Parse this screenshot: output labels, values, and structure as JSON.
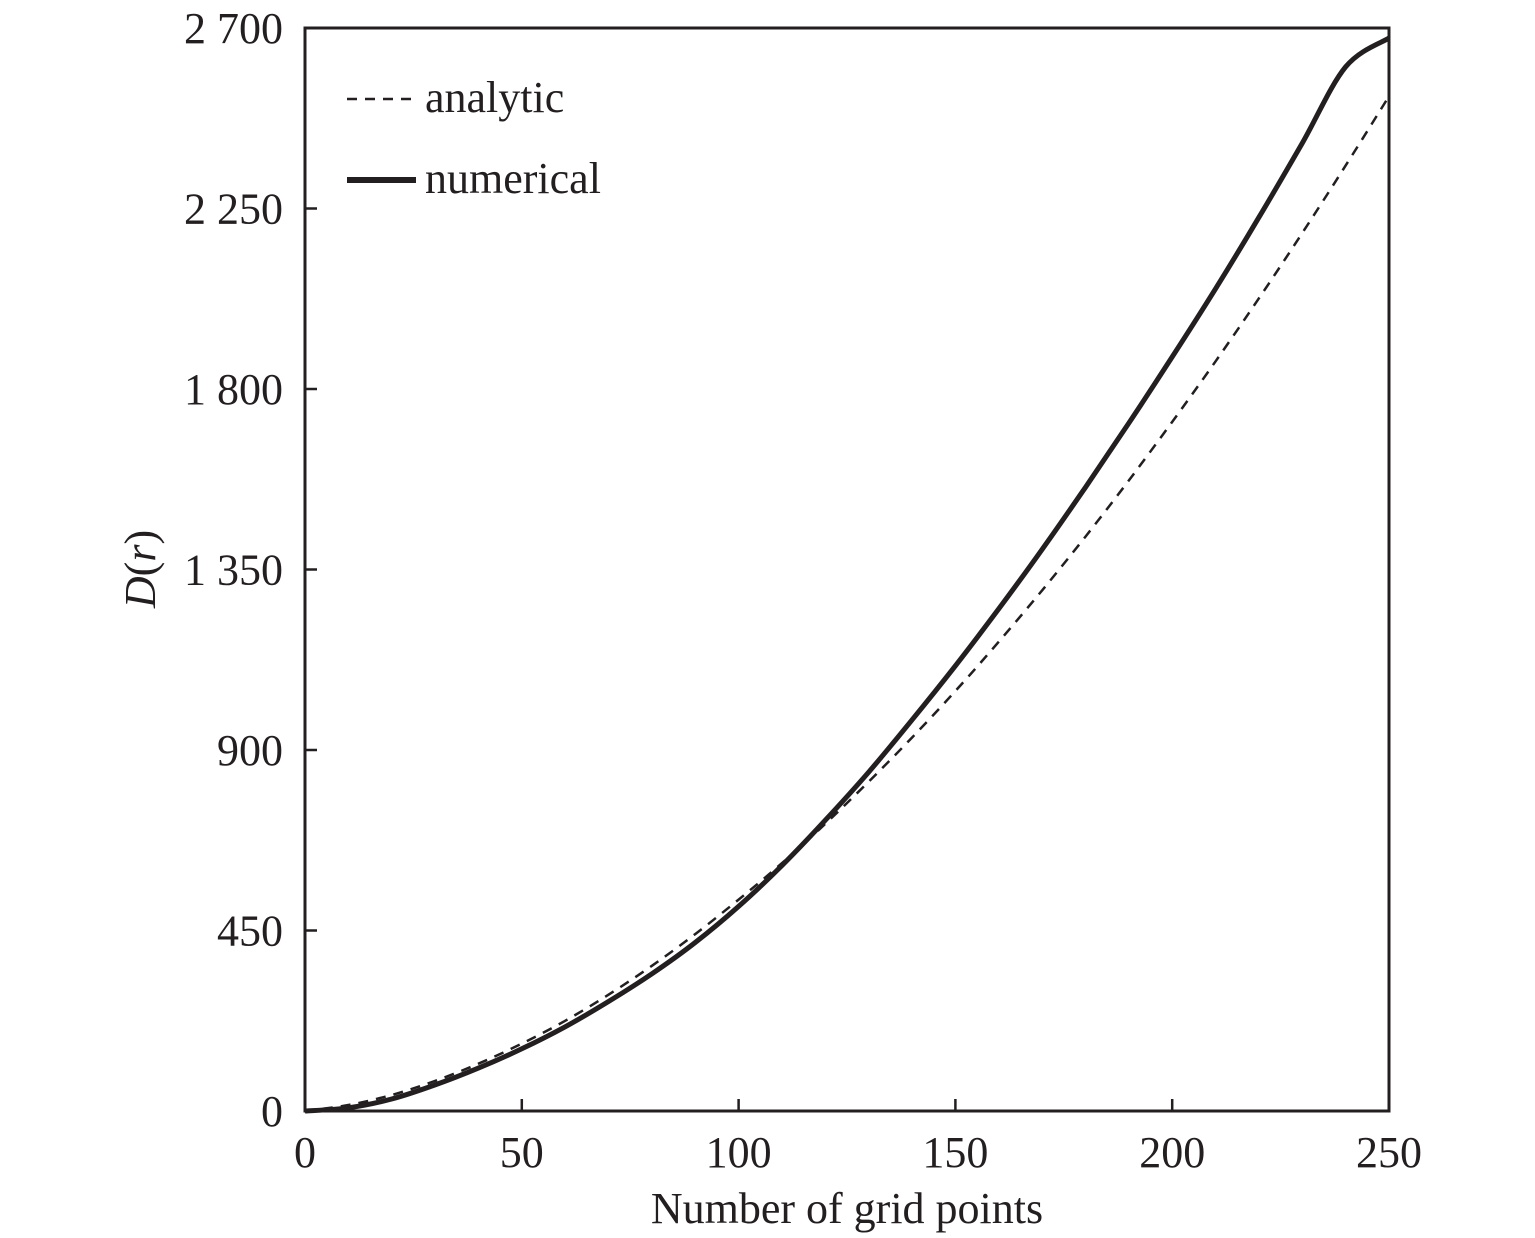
{
  "chart_data": {
    "type": "line",
    "title": "",
    "xlabel": "Number of grid points",
    "ylabel": {
      "italic_prefix": "D",
      "open": "(",
      "italic_var": "r",
      "close": ")"
    },
    "xlim": [
      0,
      250
    ],
    "ylim": [
      0,
      2700
    ],
    "xticks": [
      0,
      50,
      100,
      150,
      200,
      250
    ],
    "xtick_labels": [
      "0",
      "50",
      "100",
      "150",
      "200",
      "250"
    ],
    "yticks": [
      0,
      450,
      900,
      1350,
      1800,
      2250,
      2700
    ],
    "ytick_labels": [
      "0",
      "450",
      "900",
      "1 350",
      "1 800",
      "2 250",
      "2 700"
    ],
    "grid": false,
    "legend_position": "top-left",
    "line_color": "#231f20",
    "series": [
      {
        "name": "analytic",
        "style": "dashed",
        "x": [
          0,
          10,
          20,
          30,
          40,
          50,
          60,
          70,
          80,
          90,
          100,
          110,
          120,
          130,
          140,
          150,
          160,
          170,
          180,
          190,
          200,
          210,
          220,
          230,
          240,
          250
        ],
        "y": [
          0,
          15,
          40,
          75,
          118,
          168,
          225,
          290,
          362,
          441,
          527,
          618,
          716,
          821,
          931,
          1047,
          1170,
          1298,
          1432,
          1572,
          1718,
          1869,
          2026,
          2189,
          2357,
          2530
        ]
      },
      {
        "name": "numerical",
        "style": "solid",
        "x": [
          0,
          10,
          20,
          30,
          40,
          50,
          60,
          70,
          80,
          90,
          100,
          110,
          120,
          130,
          140,
          150,
          160,
          170,
          180,
          190,
          200,
          210,
          220,
          230,
          240,
          250
        ],
        "y": [
          0,
          8,
          30,
          65,
          107,
          155,
          210,
          273,
          342,
          420,
          510,
          612,
          725,
          845,
          975,
          1110,
          1252,
          1400,
          1555,
          1715,
          1880,
          2050,
          2228,
          2413,
          2603,
          2800
        ]
      }
    ]
  }
}
